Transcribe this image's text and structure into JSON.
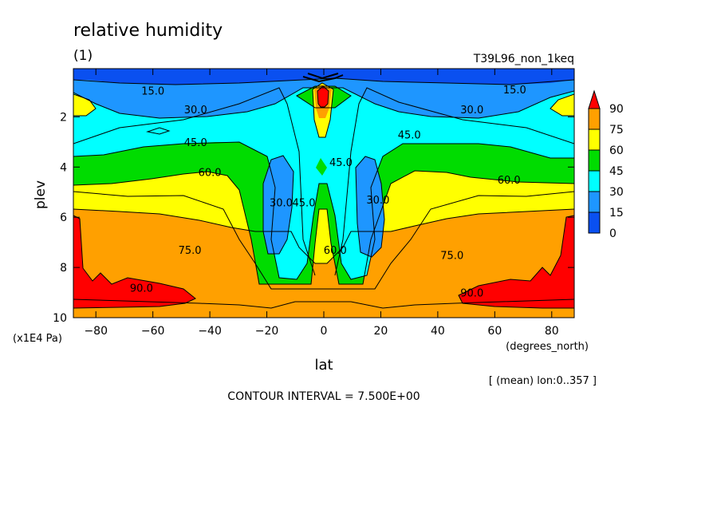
{
  "header": {
    "title": "relative humidity",
    "subtitle": "(1)",
    "run_name": "T39L96_non_1keq"
  },
  "footer": {
    "mean_note": "[ (mean) lon:0..357 ]",
    "contour_interval": "CONTOUR INTERVAL = 7.500E+00"
  },
  "chart_data": {
    "type": "heatmap",
    "title": "relative humidity",
    "xlabel": "lat",
    "xunits": "(degrees_north)",
    "ylabel": "plev",
    "yunits": "(x1E4 Pa)",
    "xlim": [
      -87.9,
      87.9
    ],
    "ylim": [
      10,
      0.08
    ],
    "y_inverted": true,
    "x_ticks": [
      -80,
      -60,
      -40,
      -20,
      0,
      20,
      40,
      60,
      80
    ],
    "y_ticks": [
      2,
      4,
      6,
      8,
      10
    ],
    "colorbar": {
      "levels": [
        0,
        15,
        30,
        45,
        60,
        75,
        90
      ],
      "colors": [
        "#0a50f0",
        "#1e96ff",
        "#00ffff",
        "#00dc00",
        "#ffff00",
        "#ffa000",
        "#ff0000"
      ],
      "extend": "max"
    },
    "contour_labels": [
      {
        "text": "15.0",
        "lat": -60,
        "plev": 0.95
      },
      {
        "text": "30.0",
        "lat": -45,
        "plev": 1.7
      },
      {
        "text": "45.0",
        "lat": -45,
        "plev": 3.0
      },
      {
        "text": "60.0",
        "lat": -40,
        "plev": 4.2
      },
      {
        "text": "75.0",
        "lat": -47,
        "plev": 7.3
      },
      {
        "text": "90.0",
        "lat": -64,
        "plev": 8.8
      },
      {
        "text": "30.0",
        "lat": -15,
        "plev": 5.4
      },
      {
        "text": "45.0",
        "lat": -7,
        "plev": 5.4
      },
      {
        "text": "45.0",
        "lat": 6,
        "plev": 3.8
      },
      {
        "text": "60.0",
        "lat": 4,
        "plev": 7.3
      },
      {
        "text": "30.0",
        "lat": 19,
        "plev": 5.3
      },
      {
        "text": "45.0",
        "lat": 30,
        "plev": 2.7
      },
      {
        "text": "60.0",
        "lat": 65,
        "plev": 4.5
      },
      {
        "text": "75.0",
        "lat": 45,
        "plev": 7.5
      },
      {
        "text": "90.0",
        "lat": 52,
        "plev": 9.0
      },
      {
        "text": "30.0",
        "lat": 52,
        "plev": 1.7
      },
      {
        "text": "15.0",
        "lat": 67,
        "plev": 0.9
      }
    ]
  }
}
